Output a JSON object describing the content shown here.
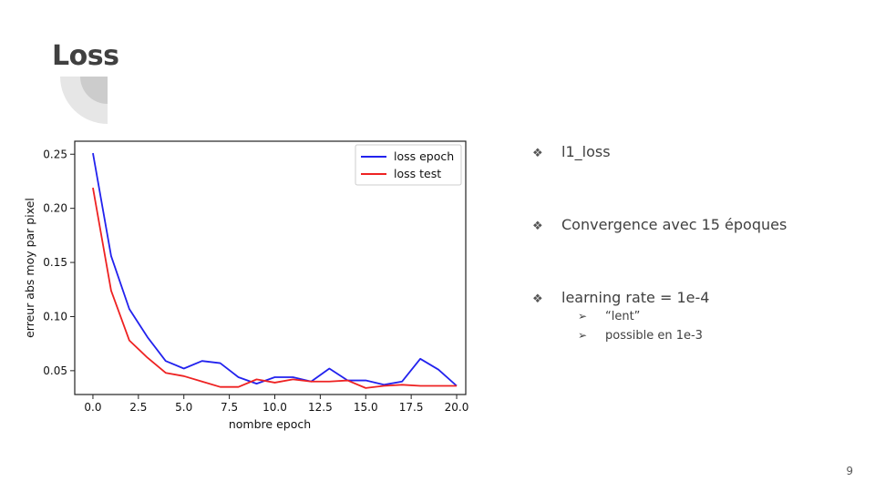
{
  "slide": {
    "title": "Loss",
    "page_number": "9",
    "bullets": [
      {
        "mark": "❖",
        "text": "l1_loss"
      },
      {
        "mark": "❖",
        "text": "Convergence avec 15 époques"
      },
      {
        "mark": "❖",
        "text": "learning rate = 1e-4",
        "subitems": [
          {
            "mark": "➢",
            "text": "“lent”"
          },
          {
            "mark": "➢",
            "text": "possible en 1e-3"
          }
        ]
      }
    ]
  },
  "chart_data": {
    "type": "line",
    "xlabel": "nombre epoch",
    "ylabel": "erreur abs moy par pixel",
    "xlim": [
      -1,
      20.5
    ],
    "ylim": [
      0.028,
      0.262
    ],
    "xticks": [
      0.0,
      2.5,
      5.0,
      7.5,
      10.0,
      12.5,
      15.0,
      17.5,
      20.0
    ],
    "xtick_labels": [
      "0.0",
      "2.5",
      "5.0",
      "7.5",
      "10.0",
      "12.5",
      "15.0",
      "17.5",
      "20.0"
    ],
    "yticks": [
      0.05,
      0.1,
      0.15,
      0.2,
      0.25
    ],
    "ytick_labels": [
      "0.05",
      "0.10",
      "0.15",
      "0.20",
      "0.25"
    ],
    "legend_position": "top-right",
    "grid": false,
    "x": [
      0,
      1,
      2,
      3,
      4,
      5,
      6,
      7,
      8,
      9,
      10,
      11,
      12,
      13,
      14,
      15,
      16,
      17,
      18,
      19,
      20
    ],
    "series": [
      {
        "name": "loss epoch",
        "color": "#2222ee",
        "values": [
          0.251,
          0.156,
          0.107,
          0.081,
          0.059,
          0.052,
          0.059,
          0.057,
          0.044,
          0.038,
          0.044,
          0.044,
          0.04,
          0.052,
          0.041,
          0.041,
          0.037,
          0.04,
          0.061,
          0.051,
          0.036
        ]
      },
      {
        "name": "loss test",
        "color": "#ee2222",
        "values": [
          0.219,
          0.124,
          0.078,
          0.062,
          0.048,
          0.045,
          0.04,
          0.035,
          0.035,
          0.042,
          0.039,
          0.042,
          0.04,
          0.04,
          0.041,
          0.034,
          0.036,
          0.037,
          0.036,
          0.036,
          0.036
        ]
      }
    ]
  }
}
